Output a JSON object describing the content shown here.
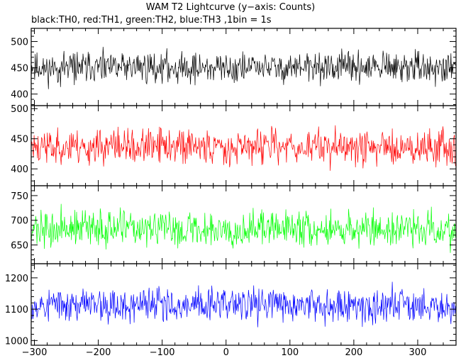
{
  "chart_data": {
    "type": "line",
    "title": "WAM T2 Lightcurve (y−axis: Counts)",
    "subtitle": "black:TH0, red:TH1, green:TH2, blue:TH3 ,1bin = 1s",
    "x_range": [
      -305,
      360
    ],
    "x_ticks": [
      -300,
      -200,
      -100,
      0,
      100,
      200,
      300
    ],
    "x_tick_labels": [
      "−300",
      "−200",
      "−100",
      "0",
      "100",
      "200",
      "300"
    ],
    "grid": false,
    "panels": [
      {
        "color": "#000000",
        "mean": 450,
        "noise": 24,
        "ylim": [
          378,
          525
        ],
        "yticks": [
          400,
          450,
          500
        ],
        "yminor": [
          380,
          390,
          410,
          420,
          430,
          440,
          460,
          470,
          480,
          490,
          510,
          520
        ],
        "seed": 11
      },
      {
        "color": "#ff0000",
        "mean": 437,
        "noise": 24,
        "ylim": [
          372,
          505
        ],
        "yticks": [
          400,
          450,
          500
        ],
        "yminor": [
          380,
          390,
          410,
          420,
          430,
          440,
          460,
          470,
          480,
          490
        ],
        "seed": 23
      },
      {
        "color": "#00ff00",
        "mean": 683,
        "noise": 30,
        "ylim": [
          612,
          770
        ],
        "yticks": [
          650,
          700,
          750
        ],
        "yminor": [
          620,
          630,
          640,
          660,
          670,
          680,
          690,
          710,
          720,
          730,
          740,
          760
        ],
        "seed": 37
      },
      {
        "color": "#0000ff",
        "mean": 1115,
        "noise": 45,
        "ylim": [
          985,
          1245
        ],
        "yticks": [
          1000,
          1100,
          1200
        ],
        "yminor": [
          1020,
          1040,
          1060,
          1080,
          1120,
          1140,
          1160,
          1180,
          1220,
          1240
        ],
        "seed": 53
      }
    ]
  }
}
